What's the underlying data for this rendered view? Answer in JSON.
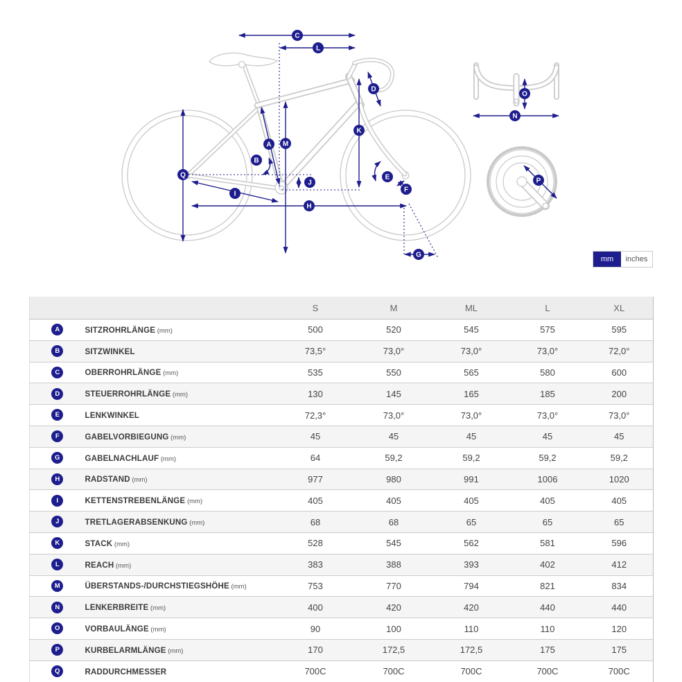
{
  "colors": {
    "accent_navy": "#1d1d8e",
    "bike_outline": "#c9c9c9"
  },
  "unit_toggle": {
    "mm_label": "mm",
    "inches_label": "inches",
    "selected": "mm"
  },
  "diagram": {
    "markers": [
      "A",
      "B",
      "C",
      "D",
      "E",
      "F",
      "G",
      "H",
      "I",
      "J",
      "K",
      "L",
      "M",
      "N",
      "O",
      "P",
      "Q"
    ]
  },
  "table": {
    "size_headers": [
      "S",
      "M",
      "ML",
      "L",
      "XL"
    ],
    "rows": [
      {
        "id": "A",
        "label": "SITZROHRLÄNGE",
        "unit": "(mm)",
        "values": [
          "500",
          "520",
          "545",
          "575",
          "595"
        ]
      },
      {
        "id": "B",
        "label": "SITZWINKEL",
        "unit": "",
        "values": [
          "73,5°",
          "73,0°",
          "73,0°",
          "73,0°",
          "72,0°"
        ]
      },
      {
        "id": "C",
        "label": "OBERROHRLÄNGE",
        "unit": "(mm)",
        "values": [
          "535",
          "550",
          "565",
          "580",
          "600"
        ]
      },
      {
        "id": "D",
        "label": "STEUERROHRLÄNGE",
        "unit": "(mm)",
        "values": [
          "130",
          "145",
          "165",
          "185",
          "200"
        ]
      },
      {
        "id": "E",
        "label": "LENKWINKEL",
        "unit": "",
        "values": [
          "72,3°",
          "73,0°",
          "73,0°",
          "73,0°",
          "73,0°"
        ]
      },
      {
        "id": "F",
        "label": "GABELVORBIEGUNG",
        "unit": "(mm)",
        "values": [
          "45",
          "45",
          "45",
          "45",
          "45"
        ]
      },
      {
        "id": "G",
        "label": "GABELNACHLAUF",
        "unit": "(mm)",
        "values": [
          "64",
          "59,2",
          "59,2",
          "59,2",
          "59,2"
        ]
      },
      {
        "id": "H",
        "label": "RADSTAND",
        "unit": "(mm)",
        "values": [
          "977",
          "980",
          "991",
          "1006",
          "1020"
        ]
      },
      {
        "id": "I",
        "label": "KETTENSTREBENLÄNGE",
        "unit": "(mm)",
        "values": [
          "405",
          "405",
          "405",
          "405",
          "405"
        ]
      },
      {
        "id": "J",
        "label": "TRETLAGERABSENKUNG",
        "unit": "(mm)",
        "values": [
          "68",
          "68",
          "65",
          "65",
          "65"
        ]
      },
      {
        "id": "K",
        "label": "STACK",
        "unit": "(mm)",
        "values": [
          "528",
          "545",
          "562",
          "581",
          "596"
        ]
      },
      {
        "id": "L",
        "label": "REACH",
        "unit": "(mm)",
        "values": [
          "383",
          "388",
          "393",
          "402",
          "412"
        ]
      },
      {
        "id": "M",
        "label": "ÜBERSTANDS-/DURCHSTIEGSHÖHE",
        "unit": "(mm)",
        "values": [
          "753",
          "770",
          "794",
          "821",
          "834"
        ]
      },
      {
        "id": "N",
        "label": "LENKERBREITE",
        "unit": "(mm)",
        "values": [
          "400",
          "420",
          "420",
          "440",
          "440"
        ]
      },
      {
        "id": "O",
        "label": "VORBAULÄNGE",
        "unit": "(mm)",
        "values": [
          "90",
          "100",
          "110",
          "110",
          "120"
        ]
      },
      {
        "id": "P",
        "label": "KURBELARMLÄNGE",
        "unit": "(mm)",
        "values": [
          "170",
          "172,5",
          "172,5",
          "175",
          "175"
        ]
      },
      {
        "id": "Q",
        "label": "RADDURCHMESSER",
        "unit": "",
        "values": [
          "700C",
          "700C",
          "700C",
          "700C",
          "700C"
        ]
      }
    ]
  }
}
